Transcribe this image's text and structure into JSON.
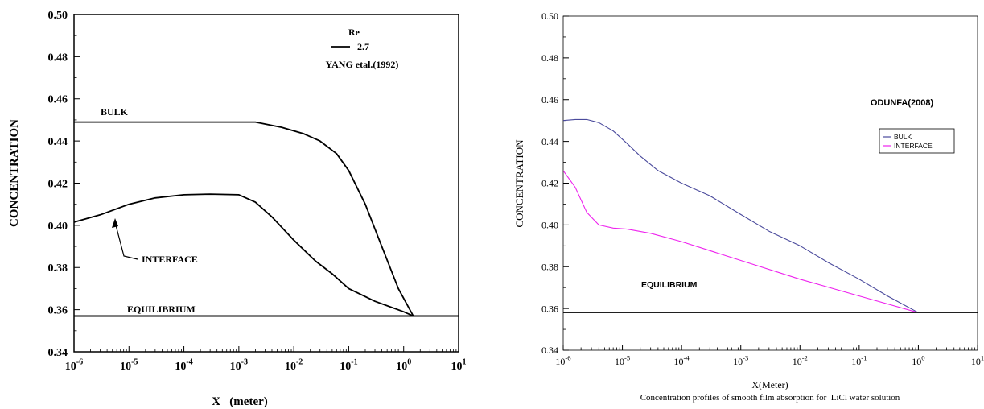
{
  "chart_data": [
    {
      "type": "line",
      "xlabel": "X   (meter)",
      "ylabel": "CONCENTRATION",
      "x_scale": "log",
      "xlim": [
        1e-06,
        10
      ],
      "ylim": [
        0.34,
        0.5
      ],
      "x_ticks": [
        {
          "base": "10",
          "exp": "-6"
        },
        {
          "base": "10",
          "exp": "-5"
        },
        {
          "base": "10",
          "exp": "-4"
        },
        {
          "base": "10",
          "exp": "-3"
        },
        {
          "base": "10",
          "exp": "-2"
        },
        {
          "base": "10",
          "exp": "-1"
        },
        {
          "base": "10",
          "exp": "0"
        },
        {
          "base": "10",
          "exp": "1"
        }
      ],
      "y_ticks": [
        "0.34",
        "0.36",
        "0.38",
        "0.40",
        "0.42",
        "0.44",
        "0.46",
        "0.48",
        "0.50"
      ],
      "legend": {
        "title": "Re",
        "entry": "2.7",
        "source": "YANG etal.(1992)"
      },
      "annotations": {
        "bulk": "BULK",
        "interface": "INTERFACE",
        "equilibrium": "EQUILIBRIUM"
      },
      "series": [
        {
          "name": "BULK",
          "x": [
            1e-06,
            1e-05,
            0.0001,
            0.001,
            0.002,
            0.006,
            0.015,
            0.03,
            0.06,
            0.1,
            0.2,
            0.4,
            0.8,
            1.5
          ],
          "y": [
            0.449,
            0.449,
            0.449,
            0.449,
            0.449,
            0.4465,
            0.4435,
            0.44,
            0.434,
            0.426,
            0.41,
            0.39,
            0.37,
            0.357
          ]
        },
        {
          "name": "INTERFACE",
          "x": [
            1e-06,
            3e-06,
            1e-05,
            3e-05,
            0.0001,
            0.0003,
            0.001,
            0.002,
            0.004,
            0.01,
            0.025,
            0.05,
            0.1,
            0.3,
            1,
            1.5
          ],
          "y": [
            0.4015,
            0.405,
            0.41,
            0.413,
            0.4145,
            0.4148,
            0.4145,
            0.411,
            0.404,
            0.393,
            0.383,
            0.377,
            0.37,
            0.364,
            0.359,
            0.357
          ]
        },
        {
          "name": "EQUILIBRIUM",
          "x": [
            1e-06,
            10
          ],
          "y": [
            0.357,
            0.357
          ]
        }
      ]
    },
    {
      "type": "line",
      "xlabel": "X(Meter)",
      "ylabel": "CONCENTRATION",
      "caption": "Concentration profiles of smooth film absorption for  LiCl water solution",
      "x_scale": "log",
      "xlim": [
        1e-06,
        10
      ],
      "ylim": [
        0.34,
        0.5
      ],
      "x_ticks": [
        {
          "base": "10",
          "exp": "-6"
        },
        {
          "base": "10",
          "exp": "-5"
        },
        {
          "base": "10",
          "exp": "-4"
        },
        {
          "base": "10",
          "exp": "-3"
        },
        {
          "base": "10",
          "exp": "-2"
        },
        {
          "base": "10",
          "exp": "-1"
        },
        {
          "base": "10",
          "exp": "0"
        },
        {
          "base": "10",
          "exp": "1"
        }
      ],
      "y_ticks": [
        "0.34",
        "0.36",
        "0.38",
        "0.40",
        "0.42",
        "0.44",
        "0.46",
        "0.48",
        "0.50"
      ],
      "source_label": "ODUNFA(2008)",
      "legend": {
        "position": "right",
        "entries": [
          "BULK",
          "INTERFACE"
        ]
      },
      "annotations": {
        "equilibrium": "EQUILIBRIUM"
      },
      "colors": {
        "bulk": "#4a4a9c",
        "interface": "#ee22ee",
        "equilibrium": "#000000"
      },
      "series": [
        {
          "name": "BULK",
          "x": [
            1e-06,
            1.6e-06,
            2.5e-06,
            4e-06,
            7e-06,
            1.2e-05,
            2e-05,
            4e-05,
            0.0001,
            0.0003,
            0.001,
            0.003,
            0.01,
            0.03,
            0.1,
            0.3,
            1
          ],
          "y": [
            0.45,
            0.4505,
            0.4505,
            0.449,
            0.445,
            0.439,
            0.433,
            0.426,
            0.42,
            0.414,
            0.405,
            0.397,
            0.39,
            0.382,
            0.374,
            0.366,
            0.358
          ]
        },
        {
          "name": "INTERFACE",
          "x": [
            1e-06,
            1.6e-06,
            2.5e-06,
            4e-06,
            7e-06,
            1.2e-05,
            3e-05,
            0.0001,
            0.001,
            0.01,
            0.1,
            1
          ],
          "y": [
            0.426,
            0.418,
            0.406,
            0.4,
            0.3985,
            0.398,
            0.396,
            0.392,
            0.383,
            0.374,
            0.366,
            0.358
          ]
        },
        {
          "name": "EQUILIBRIUM",
          "x": [
            1e-06,
            10
          ],
          "y": [
            0.358,
            0.358
          ]
        }
      ]
    }
  ]
}
